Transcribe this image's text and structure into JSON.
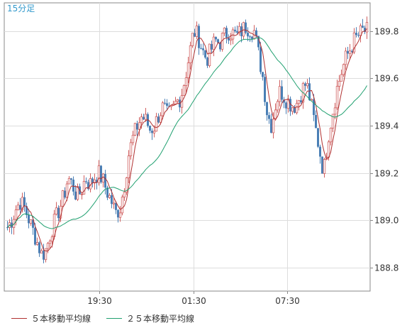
{
  "chart_data": {
    "type": "candlestick",
    "timeframe_label": "15分足",
    "ylim": [
      188.7,
      189.92
    ],
    "yticks": [
      188.8,
      189.0,
      189.2,
      189.4,
      189.6,
      189.8
    ],
    "ytick_labels": [
      "188.8",
      "189.0",
      "189.2",
      "189.4",
      "189.6",
      "189.8"
    ],
    "xticks": [
      "19:30",
      "01:30",
      "07:30"
    ],
    "grid": true,
    "candle_up_color": "#d06060",
    "candle_down_color": "#4a7fb5",
    "series": [
      {
        "name": "５本移動平均線",
        "color": "#b03030",
        "type": "line"
      },
      {
        "name": "２５本移動平均線",
        "color": "#20a070",
        "type": "line"
      }
    ],
    "ohlc_sample": {
      "start": 188.97,
      "path": [
        188.97,
        189.0,
        189.05,
        189.08,
        189.05,
        189.0,
        188.95,
        188.9,
        188.85,
        188.88,
        188.95,
        189.0,
        189.05,
        189.1,
        189.18,
        189.15,
        189.1,
        189.12,
        189.18,
        189.15,
        189.18,
        189.2,
        189.17,
        189.12,
        189.08,
        189.03,
        189.05,
        189.15,
        189.28,
        189.35,
        189.4,
        189.44,
        189.42,
        189.38,
        189.4,
        189.45,
        189.48,
        189.44,
        189.46,
        189.5,
        189.52,
        189.6,
        189.7,
        189.8,
        189.78,
        189.72,
        189.68,
        189.72,
        189.76,
        189.75,
        189.78,
        189.8,
        189.79,
        189.78,
        189.8,
        189.82,
        189.81,
        189.8,
        189.7,
        189.6,
        189.45,
        189.4,
        189.5,
        189.55,
        189.52,
        189.5,
        189.48,
        189.5,
        189.55,
        189.58,
        189.5,
        189.4,
        189.3,
        189.2,
        189.35,
        189.45,
        189.55,
        189.62,
        189.68,
        189.72,
        189.76,
        189.78,
        189.8,
        189.8
      ]
    }
  }
}
